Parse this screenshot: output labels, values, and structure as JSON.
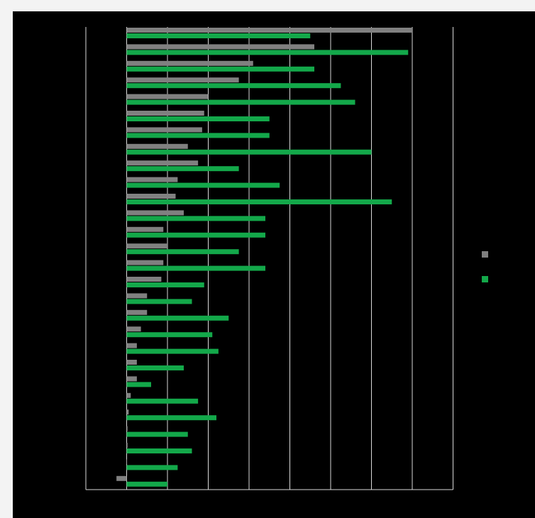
{
  "chart_data": {
    "type": "bar",
    "orientation": "horizontal",
    "title": "",
    "xlabel": "",
    "ylabel": "",
    "xlim": [
      -1,
      8
    ],
    "grid": true,
    "legend_position": "right",
    "category_count": 28,
    "series": [
      {
        "color": "#808080",
        "values": [
          7.0,
          4.6,
          3.1,
          2.75,
          2.0,
          1.9,
          1.85,
          1.5,
          1.75,
          1.25,
          1.2,
          1.4,
          0.9,
          1.0,
          0.9,
          0.85,
          0.5,
          0.5,
          0.35,
          0.25,
          0.25,
          0.25,
          0.1,
          0.05,
          0.02,
          0.02,
          0.0,
          -0.25
        ]
      },
      {
        "color": "#13a84a",
        "values": [
          4.5,
          6.9,
          4.6,
          5.25,
          5.6,
          3.5,
          3.5,
          6.0,
          2.75,
          3.75,
          6.5,
          3.4,
          3.4,
          2.75,
          3.4,
          1.9,
          1.6,
          2.5,
          2.1,
          2.25,
          1.4,
          0.6,
          1.75,
          2.2,
          1.5,
          1.6,
          1.25,
          1.0
        ]
      }
    ]
  }
}
